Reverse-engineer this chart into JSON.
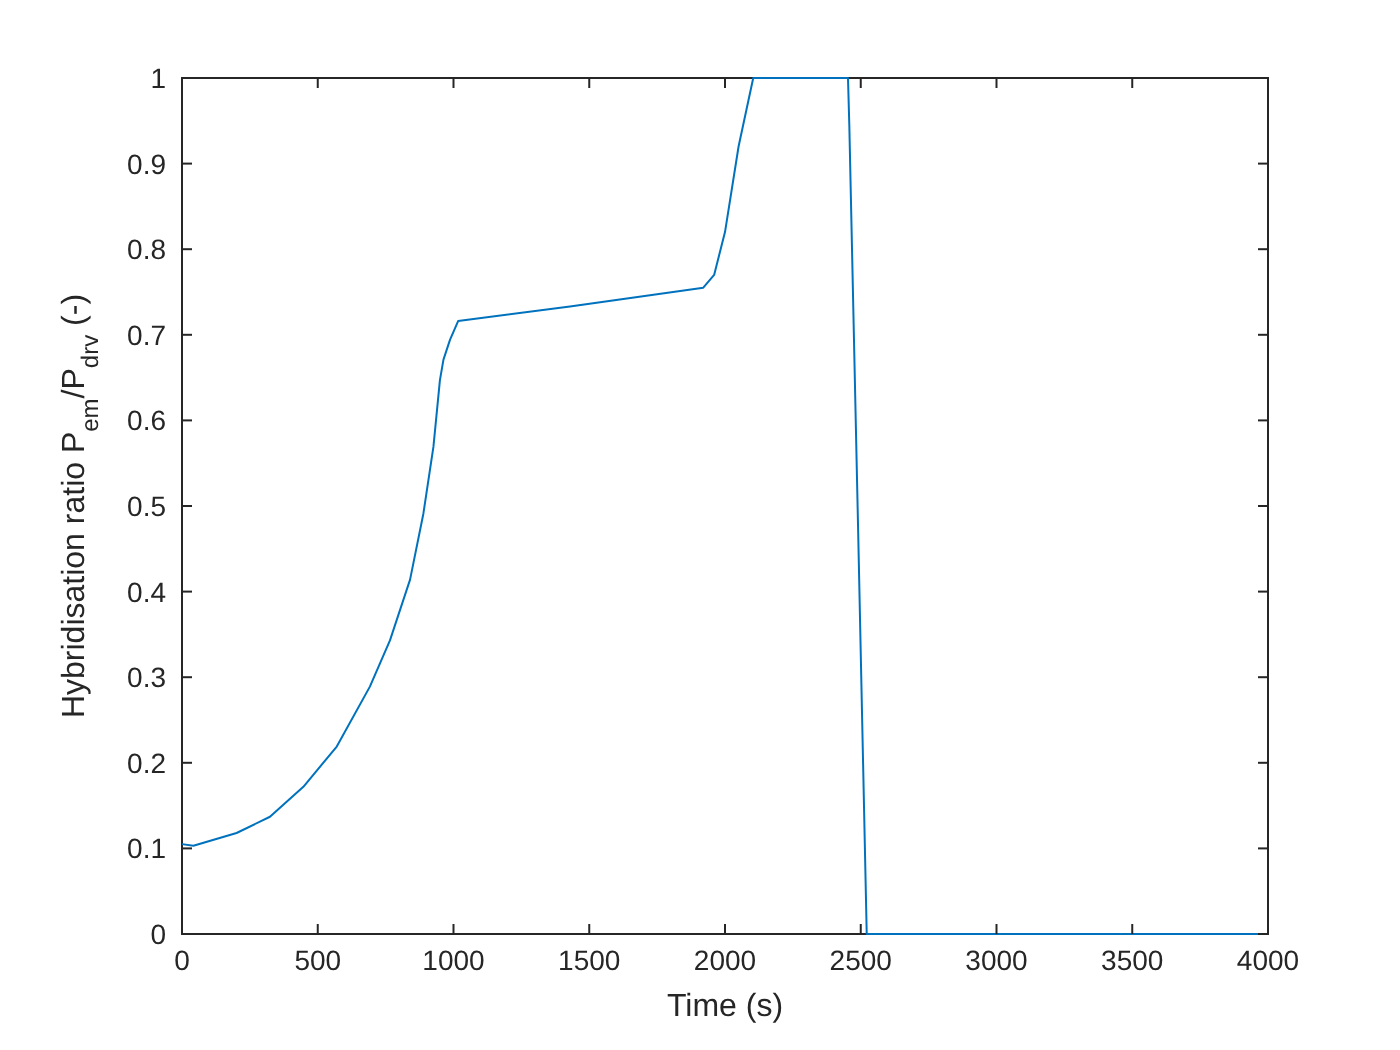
{
  "chart_data": {
    "type": "line",
    "xlabel": "Time (s)",
    "ylabel": "Hybridisation ratio P$_{em}$/P$_{drv}$ (-)",
    "x": [
      0,
      42,
      201,
      324,
      447,
      570,
      692,
      766,
      840,
      889,
      926,
      950,
      963,
      987,
      1017,
      1429,
      1920,
      1960,
      2000,
      2050,
      2104,
      2453,
      2458,
      2490,
      2522,
      4000
    ],
    "series": [
      {
        "color": "#0072bd",
        "values": [
          0.105,
          0.103,
          0.118,
          0.137,
          0.172,
          0.219,
          0.289,
          0.343,
          0.414,
          0.491,
          0.569,
          0.647,
          0.671,
          0.694,
          0.716,
          0.733,
          0.755,
          0.77,
          0.82,
          0.92,
          1,
          1,
          0.943,
          0.477,
          0,
          0
        ]
      }
    ],
    "xlim": [
      0,
      4000
    ],
    "ylim": [
      0,
      1
    ],
    "xticks": [
      0,
      500,
      1000,
      1500,
      2000,
      2500,
      3000,
      3500,
      4000
    ],
    "yticks": [
      0,
      0.1,
      0.2,
      0.3,
      0.4,
      0.5,
      0.6,
      0.7,
      0.8,
      0.9,
      1
    ],
    "grid": false
  }
}
